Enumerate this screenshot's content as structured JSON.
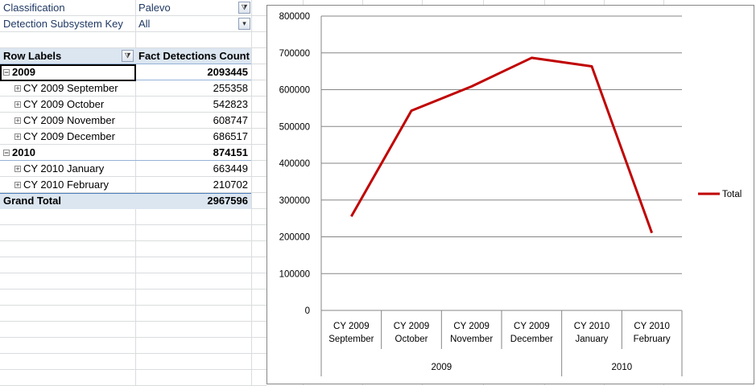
{
  "filters": [
    {
      "label": "Classification",
      "value": "Palevo"
    },
    {
      "label": "Detection Subsystem Key",
      "value": "All"
    }
  ],
  "pivot": {
    "header": {
      "row_labels": "Row Labels",
      "value_label": "Fact Detections Count"
    },
    "groups": [
      {
        "label": "2009",
        "total": "2093445",
        "rows": [
          {
            "label": "CY 2009 September",
            "value": "255358"
          },
          {
            "label": "CY 2009 October",
            "value": "542823"
          },
          {
            "label": "CY 2009 November",
            "value": "608747"
          },
          {
            "label": "CY 2009 December",
            "value": "686517"
          }
        ]
      },
      {
        "label": "2010",
        "total": "874151",
        "rows": [
          {
            "label": "CY 2010 January",
            "value": "663449"
          },
          {
            "label": "CY 2010 February",
            "value": "210702"
          }
        ]
      }
    ],
    "grand_total": {
      "label": "Grand Total",
      "value": "2967596"
    }
  },
  "chart_data": {
    "type": "line",
    "category_groups": [
      {
        "label": "2009",
        "categories": [
          "CY 2009 September",
          "CY 2009 October",
          "CY 2009 November",
          "CY 2009 December"
        ]
      },
      {
        "label": "2010",
        "categories": [
          "CY 2010 January",
          "CY 2010 February"
        ]
      }
    ],
    "series": [
      {
        "name": "Total",
        "color": "#c00000",
        "values": [
          255358,
          542823,
          608747,
          686517,
          663449,
          210702
        ]
      }
    ],
    "ylim": [
      0,
      800000
    ],
    "yticks": [
      0,
      100000,
      200000,
      300000,
      400000,
      500000,
      600000,
      700000,
      800000
    ],
    "grid": true,
    "legend": "right"
  }
}
